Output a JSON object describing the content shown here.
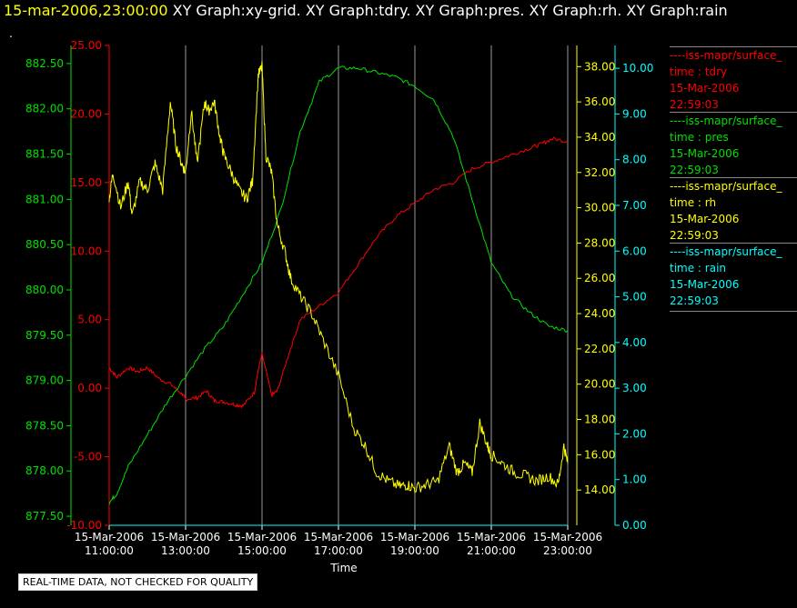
{
  "header": {
    "timestamp": "15-mar-2006,23:00:00",
    "graphs": "XY Graph:xy-grid.  XY Graph:tdry.  XY Graph:pres.  XY Graph:rh.  XY Graph:rain"
  },
  "marker": ".",
  "notice": "REAL-TIME DATA, NOT CHECKED FOR QUALITY",
  "legend": [
    {
      "name": "----iss-mapr/surface_",
      "field": "time : tdry",
      "date": "15-Mar-2006",
      "time": "22:59:03",
      "color": "#ff0000"
    },
    {
      "name": "----iss-mapr/surface_",
      "field": "time : pres",
      "date": "15-Mar-2006",
      "time": "22:59:03",
      "color": "#00e000"
    },
    {
      "name": "----iss-mapr/surface_",
      "field": "time : rh",
      "date": "15-Mar-2006",
      "time": "22:59:03",
      "color": "#ffff00"
    },
    {
      "name": "----iss-mapr/surface_",
      "field": "time : rain",
      "date": "15-Mar-2006",
      "time": "22:59:03",
      "color": "#00ffff"
    }
  ],
  "chart_data": {
    "type": "line",
    "xlabel": "Time",
    "x_ticks": [
      [
        "15-Mar-2006",
        "11:00:00"
      ],
      [
        "15-Mar-2006",
        "13:00:00"
      ],
      [
        "15-Mar-2006",
        "15:00:00"
      ],
      [
        "15-Mar-2006",
        "17:00:00"
      ],
      [
        "15-Mar-2006",
        "19:00:00"
      ],
      [
        "15-Mar-2006",
        "21:00:00"
      ],
      [
        "15-Mar-2006",
        "23:00:00"
      ]
    ],
    "x_range_hours": [
      11,
      23
    ],
    "grid": "vertical",
    "axes": {
      "tdry": {
        "color": "#ff0000",
        "range": [
          -10,
          25
        ],
        "ticks": [
          "-10.00",
          "-5.00",
          "0.00",
          "5.00",
          "10.00",
          "15.00",
          "20.00",
          "25.00"
        ]
      },
      "pres": {
        "color": "#00e000",
        "range": [
          877.4,
          882.7
        ],
        "ticks": [
          "877.50",
          "878.00",
          "878.50",
          "879.00",
          "879.50",
          "880.00",
          "880.50",
          "881.00",
          "881.50",
          "882.00",
          "882.50"
        ]
      },
      "rh": {
        "color": "#ffff00",
        "range": [
          12,
          39.2
        ],
        "ticks": [
          "14.00",
          "16.00",
          "18.00",
          "20.00",
          "22.00",
          "24.00",
          "26.00",
          "28.00",
          "30.00",
          "32.00",
          "34.00",
          "36.00",
          "38.00"
        ]
      },
      "rain": {
        "color": "#00ffff",
        "range": [
          0,
          10.5
        ],
        "ticks": [
          "0.00",
          "1.00",
          "2.00",
          "3.00",
          "4.00",
          "5.00",
          "6.00",
          "7.00",
          "8.00",
          "9.00",
          "10.00"
        ]
      }
    },
    "series": [
      {
        "name": "tdry",
        "axis": "tdry",
        "color": "#ff0000",
        "x": [
          11,
          11.2,
          11.5,
          11.75,
          12,
          12.3,
          12.6,
          12.9,
          13,
          13.3,
          13.55,
          13.75,
          14,
          14.3,
          14.5,
          14.8,
          14.9,
          15,
          15.25,
          15.4,
          15.7,
          16,
          16.5,
          17,
          17.5,
          18,
          18.5,
          19,
          19.5,
          20,
          20.5,
          21,
          21.5,
          22,
          22.3,
          22.6,
          23
        ],
        "y": [
          1.5,
          0.8,
          1.5,
          1.2,
          1.5,
          0.7,
          0.3,
          -0.4,
          -0.8,
          -0.7,
          -0.2,
          -0.9,
          -1.0,
          -1.2,
          -1.3,
          -0.3,
          1.3,
          2.5,
          -0.5,
          -0.2,
          2.5,
          5.0,
          6.0,
          7.0,
          9.0,
          11.0,
          12.5,
          13.5,
          14.5,
          15.0,
          16.0,
          16.5,
          17.0,
          17.5,
          17.8,
          18.2,
          18.0
        ]
      },
      {
        "name": "pres",
        "axis": "pres",
        "color": "#00e000",
        "x": [
          11,
          11.2,
          11.5,
          12,
          12.5,
          13,
          13.5,
          14,
          14.5,
          15,
          15.5,
          16,
          16.5,
          17,
          17.5,
          18,
          18.5,
          19,
          19.5,
          20,
          20.5,
          21,
          21.5,
          22,
          22.5,
          23
        ],
        "y": [
          877.65,
          877.75,
          878.05,
          878.4,
          878.75,
          879.05,
          879.35,
          879.6,
          879.95,
          880.3,
          880.9,
          881.75,
          882.3,
          882.45,
          882.45,
          882.4,
          882.35,
          882.25,
          882.1,
          881.7,
          881.0,
          880.3,
          879.95,
          879.75,
          879.6,
          879.55
        ]
      },
      {
        "name": "rh",
        "axis": "rh",
        "color": "#ffff00",
        "x": [
          11,
          11.1,
          11.3,
          11.5,
          11.6,
          11.8,
          12,
          12.2,
          12.4,
          12.6,
          12.75,
          12.9,
          13,
          13.15,
          13.3,
          13.5,
          13.6,
          13.75,
          13.9,
          14,
          14.2,
          14.4,
          14.6,
          14.75,
          14.9,
          15,
          15.1,
          15.25,
          15.4,
          15.6,
          15.75,
          16,
          16.3,
          16.6,
          17,
          17.4,
          17.7,
          18,
          18.3,
          18.6,
          18.8,
          19,
          19.3,
          19.6,
          19.9,
          20.1,
          20.3,
          20.5,
          20.7,
          20.9,
          21,
          21.3,
          21.6,
          21.9,
          22.2,
          22.5,
          22.75,
          22.9,
          23
        ],
        "y": [
          30.5,
          32.0,
          30.0,
          31.5,
          29.5,
          31.5,
          31.0,
          32.5,
          31.0,
          36.0,
          33.5,
          32.5,
          32.0,
          35.5,
          32.5,
          36.0,
          35.5,
          36.0,
          34.0,
          33.0,
          32.0,
          31.0,
          30.5,
          31.5,
          37.5,
          38.0,
          33.0,
          32.0,
          29.0,
          27.5,
          26.0,
          25.0,
          24.0,
          22.5,
          20.5,
          17.5,
          16.5,
          15.0,
          14.5,
          14.2,
          14.3,
          14.1,
          14.3,
          14.5,
          16.5,
          15.0,
          15.5,
          15.0,
          17.8,
          16.5,
          16.0,
          15.5,
          15.0,
          14.8,
          14.5,
          14.8,
          14.3,
          16.5,
          15.5
        ]
      },
      {
        "name": "rain",
        "axis": "rain",
        "color": "#00ffff",
        "x": [
          11,
          23
        ],
        "y": [
          0,
          0
        ]
      }
    ]
  }
}
